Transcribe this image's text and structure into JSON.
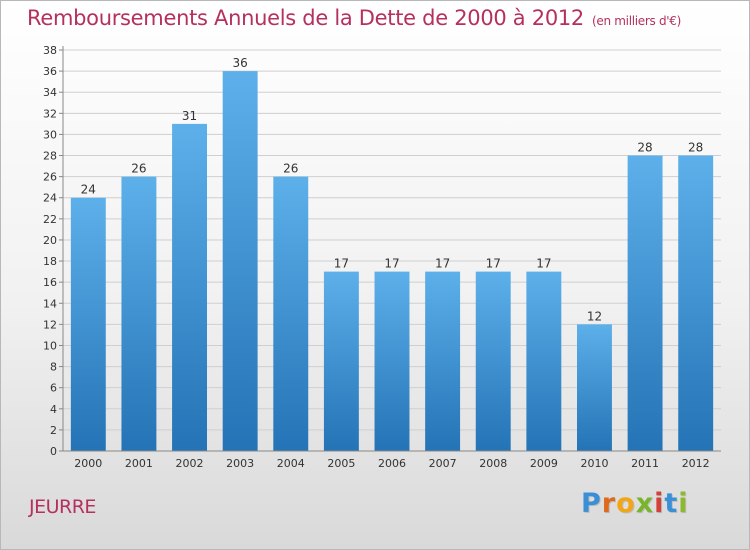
{
  "title": "Remboursements Annuels de la Dette de 2000 à 2012",
  "subtitle": "(en milliers d'€)",
  "location": "JEURRE",
  "logo": {
    "text": "Proxiti",
    "letters": [
      {
        "char": "P",
        "color": "#3a8fd6"
      },
      {
        "char": "r",
        "color": "#e06a1b"
      },
      {
        "char": "o",
        "color": "#f2a615"
      },
      {
        "char": "x",
        "color": "#78b52a"
      },
      {
        "char": "i",
        "color": "#d43f3a"
      },
      {
        "char": "t",
        "color": "#3a8fd6"
      },
      {
        "char": "i",
        "color": "#8cba2c"
      }
    ]
  },
  "colors": {
    "title": "#b5305f",
    "bar_top": "#5db0ea",
    "bar_bottom": "#2473b6",
    "grid": "#cfcfcf"
  },
  "chart_data": {
    "type": "bar",
    "categories": [
      "2000",
      "2001",
      "2002",
      "2003",
      "2004",
      "2005",
      "2006",
      "2007",
      "2008",
      "2009",
      "2010",
      "2011",
      "2012"
    ],
    "values": [
      24,
      26,
      31,
      36,
      26,
      17,
      17,
      17,
      17,
      17,
      12,
      28,
      28
    ],
    "data_labels": [
      "24",
      "26",
      "31",
      "36",
      "26",
      "17",
      "17",
      "17",
      "17",
      "17",
      "12",
      "28",
      "28"
    ],
    "y_ticks": [
      "0",
      "2",
      "4",
      "6",
      "8",
      "10",
      "12",
      "14",
      "16",
      "18",
      "20",
      "22",
      "24",
      "26",
      "28",
      "30",
      "32",
      "34",
      "36",
      "38"
    ],
    "ylim": [
      0,
      38
    ],
    "grid": true,
    "legend": "none"
  }
}
